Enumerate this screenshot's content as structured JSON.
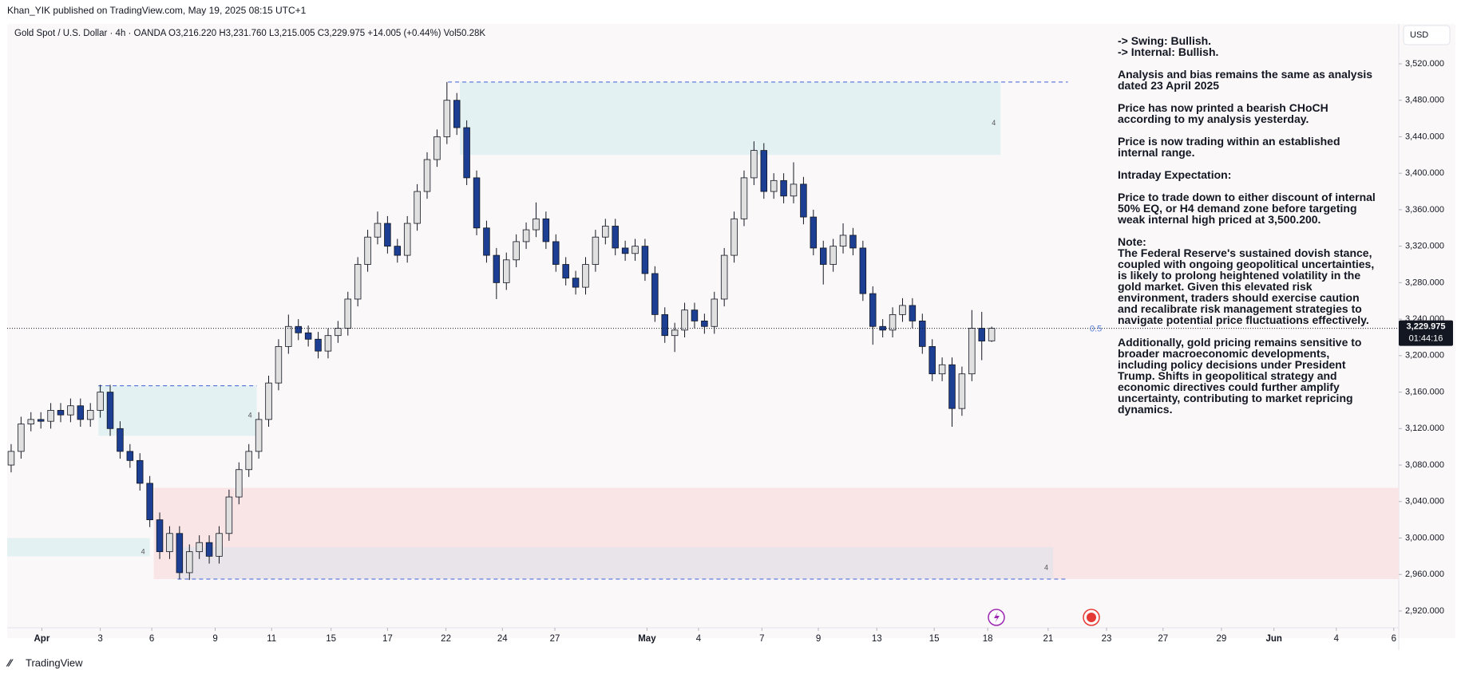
{
  "header": "Khan_YIK published on TradingView.com, May 19, 2025 08:15 UTC+1",
  "footer": "TradingView",
  "notes": [
    [
      "-> Swing:  Bullish.",
      "-> Internal:  Bullish."
    ],
    [
      "Analysis and bias remains the same as analysis dated 23 April 2025"
    ],
    [
      "Price has now printed a bearish CHoCH according to my analysis yesterday."
    ],
    [
      "Price is now trading within an established internal range."
    ],
    [
      "Intraday Expectation:"
    ],
    [
      "Price to trade down to either discount of internal 50% EQ, or H4 demand zone before targeting weak internal high priced at 3,500.200."
    ],
    [
      "Note:",
      "The Federal Reserve's sustained dovish stance, coupled with ongoing geopolitical uncertainties, is likely to prolong heightened volatility in the gold market. Given this elevated risk environment, traders should exercise caution and recalibrate risk management strategies to navigate potential price fluctuations effectively."
    ],
    [
      "Additionally, gold pricing remains sensitive to broader macroeconomic developments, including policy decisions under President Trump. Shifts in geopolitical strategy and economic directives could further amplify uncertainty, contributing to market repricing dynamics."
    ]
  ],
  "chart_data": {
    "type": "candlestick",
    "title": "Gold Spot / U.S. Dollar · 4h · OANDA  O3,216.220  H3,231.760  L3,215.005  C3,229.975  +14.005 (+0.44%)  Vol50.28K",
    "currency": "USD",
    "up_color": "#e0e0e0",
    "down_color": "#1c3f94",
    "open": [
      3080,
      3095,
      3125,
      3130,
      3128,
      3140,
      3135,
      3145,
      3130,
      3140,
      3160,
      3120,
      3095,
      3085,
      3060,
      3020,
      2985,
      3005,
      2962,
      2985,
      2995,
      2980,
      3005,
      3045,
      3075,
      3095,
      3130,
      3170,
      3210,
      3232,
      3225,
      3218,
      3205,
      3222,
      3230,
      3262,
      3300,
      3330,
      3345,
      3320,
      3310,
      3345,
      3380,
      3415,
      3440,
      3480,
      3450,
      3395,
      3340,
      3310,
      3280,
      3305,
      3325,
      3338,
      3350,
      3325,
      3300,
      3285,
      3275,
      3300,
      3330,
      3342,
      3318,
      3312,
      3320,
      3290,
      3245,
      3222,
      3228,
      3250,
      3238,
      3232,
      3262,
      3310,
      3350,
      3395,
      3425,
      3380,
      3392,
      3375,
      3388,
      3352,
      3318,
      3300,
      3320,
      3332,
      3318,
      3268,
      3232,
      3228,
      3245,
      3255,
      3238,
      3210,
      3180,
      3190,
      3142,
      3180,
      3230,
      3216.22
    ],
    "high": [
      3103,
      3133,
      3138,
      3138,
      3148,
      3148,
      3153,
      3153,
      3148,
      3168,
      3168,
      3128,
      3103,
      3093,
      3068,
      3028,
      3013,
      3013,
      2993,
      3003,
      3003,
      3013,
      3053,
      3083,
      3103,
      3138,
      3178,
      3218,
      3245,
      3240,
      3233,
      3226,
      3230,
      3238,
      3270,
      3308,
      3338,
      3358,
      3353,
      3328,
      3353,
      3388,
      3423,
      3448,
      3500,
      3488,
      3458,
      3403,
      3348,
      3318,
      3313,
      3333,
      3346,
      3368,
      3358,
      3333,
      3308,
      3293,
      3308,
      3338,
      3350,
      3350,
      3326,
      3328,
      3328,
      3298,
      3253,
      3236,
      3258,
      3258,
      3246,
      3270,
      3318,
      3358,
      3403,
      3435,
      3433,
      3400,
      3400,
      3412,
      3396,
      3360,
      3326,
      3328,
      3345,
      3340,
      3326,
      3276,
      3240,
      3253,
      3263,
      3263,
      3246,
      3218,
      3198,
      3198,
      3188,
      3250,
      3248,
      3231.76
    ],
    "low": [
      3072,
      3087,
      3117,
      3120,
      3120,
      3127,
      3127,
      3122,
      3122,
      3132,
      3112,
      3087,
      3077,
      3052,
      3012,
      2977,
      2977,
      2955,
      2954,
      2977,
      2972,
      2972,
      2997,
      3037,
      3067,
      3087,
      3122,
      3162,
      3202,
      3217,
      3210,
      3197,
      3197,
      3214,
      3222,
      3254,
      3292,
      3322,
      3312,
      3302,
      3302,
      3337,
      3372,
      3407,
      3432,
      3442,
      3387,
      3332,
      3302,
      3262,
      3272,
      3297,
      3317,
      3330,
      3317,
      3292,
      3277,
      3267,
      3267,
      3292,
      3322,
      3310,
      3304,
      3304,
      3282,
      3237,
      3214,
      3204,
      3220,
      3230,
      3224,
      3224,
      3254,
      3302,
      3342,
      3387,
      3372,
      3372,
      3367,
      3367,
      3344,
      3310,
      3278,
      3292,
      3312,
      3310,
      3260,
      3212,
      3220,
      3220,
      3237,
      3230,
      3202,
      3172,
      3172,
      3122,
      3134,
      3172,
      3195,
      3215.005
    ],
    "close": [
      3095,
      3125,
      3130,
      3128,
      3140,
      3135,
      3145,
      3130,
      3140,
      3160,
      3120,
      3095,
      3085,
      3060,
      3020,
      2985,
      3005,
      2962,
      2985,
      2995,
      2980,
      3005,
      3045,
      3075,
      3095,
      3130,
      3170,
      3210,
      3232,
      3225,
      3218,
      3205,
      3222,
      3230,
      3262,
      3300,
      3330,
      3345,
      3320,
      3310,
      3345,
      3380,
      3415,
      3440,
      3480,
      3450,
      3395,
      3340,
      3310,
      3280,
      3305,
      3325,
      3338,
      3350,
      3325,
      3300,
      3285,
      3275,
      3300,
      3330,
      3342,
      3318,
      3312,
      3320,
      3290,
      3245,
      3222,
      3228,
      3250,
      3238,
      3232,
      3262,
      3310,
      3350,
      3395,
      3425,
      3380,
      3392,
      3375,
      3388,
      3352,
      3318,
      3300,
      3320,
      3332,
      3318,
      3268,
      3232,
      3228,
      3245,
      3255,
      3238,
      3210,
      3180,
      3190,
      3142,
      3180,
      3230,
      3216,
      3229.975
    ],
    "last_price_label": "3,229.975",
    "countdown": "01:44:16",
    "eq_label": "0.5",
    "xlim": [
      -0.4,
      140.1
    ],
    "ylim": [
      2901.6,
      3561.1
    ],
    "xticks": [
      {
        "value": 3.1,
        "label": "Apr"
      },
      {
        "value": 9.0,
        "label": "3"
      },
      {
        "value": 14.2,
        "label": "6"
      },
      {
        "value": 20.6,
        "label": "9"
      },
      {
        "value": 26.3,
        "label": "11"
      },
      {
        "value": 32.3,
        "label": "15"
      },
      {
        "value": 38.0,
        "label": "17"
      },
      {
        "value": 43.9,
        "label": "22"
      },
      {
        "value": 49.6,
        "label": "24"
      },
      {
        "value": 54.9,
        "label": "27"
      },
      {
        "value": 64.2,
        "label": "May"
      },
      {
        "value": 69.4,
        "label": "4"
      },
      {
        "value": 75.8,
        "label": "7"
      },
      {
        "value": 81.5,
        "label": "9"
      },
      {
        "value": 87.4,
        "label": "13"
      },
      {
        "value": 93.2,
        "label": "15"
      },
      {
        "value": 98.6,
        "label": "18"
      },
      {
        "value": 104.7,
        "label": "21"
      },
      {
        "value": 110.6,
        "label": "23"
      },
      {
        "value": 116.3,
        "label": "27"
      },
      {
        "value": 122.2,
        "label": "29"
      },
      {
        "value": 127.5,
        "label": "Jun"
      },
      {
        "value": 133.8,
        "label": "4"
      },
      {
        "value": 139.6,
        "label": "6"
      }
    ],
    "yticks": [
      {
        "value": 2920,
        "label": "2,920.000"
      },
      {
        "value": 2960,
        "label": "2,960.000"
      },
      {
        "value": 3000,
        "label": "3,000.000"
      },
      {
        "value": 3040,
        "label": "3,040.000"
      },
      {
        "value": 3080,
        "label": "3,080.000"
      },
      {
        "value": 3120,
        "label": "3,120.000"
      },
      {
        "value": 3160,
        "label": "3,160.000"
      },
      {
        "value": 3200,
        "label": "3,200.000"
      },
      {
        "value": 3240,
        "label": "3,240.000"
      },
      {
        "value": 3280,
        "label": "3,280.000"
      },
      {
        "value": 3320,
        "label": "3,320.000"
      },
      {
        "value": 3360,
        "label": "3,360.000"
      },
      {
        "value": 3400,
        "label": "3,400.000"
      },
      {
        "value": 3440,
        "label": "3,440.000"
      },
      {
        "value": 3480,
        "label": "3,480.000"
      },
      {
        "value": 3520,
        "label": "3,520.000"
      }
    ],
    "zones": [
      {
        "top": 3055,
        "bottom": 2955,
        "start": 14.4,
        "end": 140.1,
        "color": "#f9e4e6"
      },
      {
        "top": 2990,
        "bottom": 2955,
        "start": 16.8,
        "end": 105.2,
        "color": "#e8e4ea",
        "label": "4"
      },
      {
        "top": 3500,
        "bottom": 3420,
        "start": 45.3,
        "end": 99.9,
        "color": "#e4f1f2",
        "label": "4"
      },
      {
        "top": 3167,
        "bottom": 3112,
        "start": 8.8,
        "end": 24.8,
        "color": "#e4f1f2",
        "label": "4"
      },
      {
        "top": 3000,
        "bottom": 2980,
        "start": -0.4,
        "end": 14.0,
        "color": "#e4f1f2",
        "label": "4"
      }
    ],
    "levels": [
      {
        "value": 3500,
        "start": 44.1,
        "end": 106.7,
        "color": "#3d5fd6"
      },
      {
        "value": 2955,
        "start": 16.8,
        "end": 106.7,
        "color": "#3d5fd6"
      },
      {
        "value": 3167,
        "start": 8.8,
        "end": 24.8,
        "color": "#3d5fd6"
      }
    ]
  }
}
